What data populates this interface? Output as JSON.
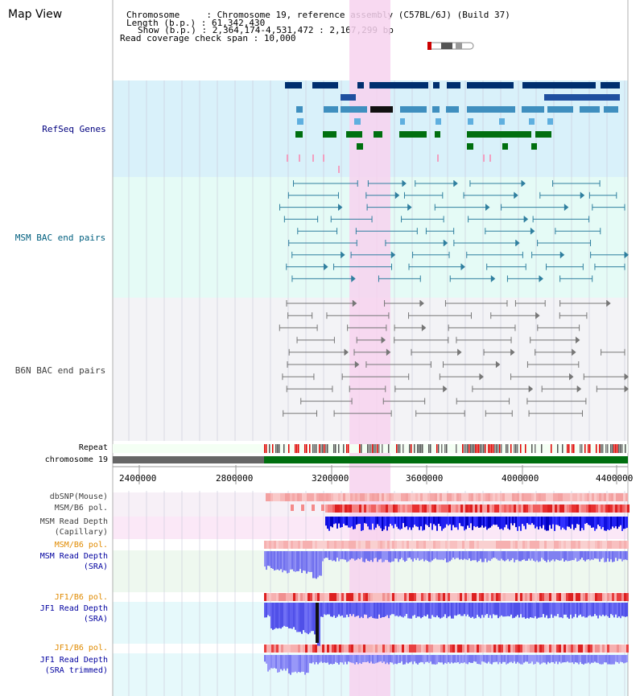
{
  "title": "Map View",
  "info": {
    "chromosome_key": "Chromosome     : ",
    "chromosome": "Chromosome 19, reference assembly (C57BL/6J) (Build 37)",
    "length_key": "Length (b.p.) : ",
    "length": "61,342,430",
    "show_key": "Show (b.p.) : ",
    "show": "2,364,174-4,531,472 : 2,167,299 bp",
    "coverage_key": "Read coverage check span : ",
    "coverage": "10,000"
  },
  "tracks": {
    "refseq": "RefSeq Genes",
    "msm_bac": "MSM BAC end pairs",
    "b6n_bac": "B6N BAC end pairs",
    "repeat": "Repeat",
    "chromosome": "chromosome 19",
    "dbsnp": "dbSNP(Mouse)",
    "msm_b6_pol_1": "MSM/B6 pol.",
    "msm_depth_cap_1": "MSM Read Depth",
    "msm_depth_cap_2": "(Capillary)",
    "msm_b6_pol_2": "MSM/B6 pol.",
    "msm_depth_sra_1": "MSM Read Depth",
    "msm_depth_sra_2": "(SRA)",
    "jf1_b6_pol_1": "JF1/B6 pol.",
    "jf1_depth_sra_1": "JF1 Read Depth",
    "jf1_depth_sra_2": "(SRA)",
    "jf1_b6_pol_2": "JF1/B6 pol.",
    "jf1_depth_trim_1": "JF1 Read Depth",
    "jf1_depth_trim_2": "(SRA trimmed)"
  },
  "axis": {
    "ticks": [
      "2400000",
      "2800000",
      "3200000",
      "3600000",
      "4000000",
      "4400000"
    ]
  },
  "colors": {
    "refseq_bg": "#d9f1fa",
    "msm_bac_bg": "#e5fbf6",
    "b6n_bac_bg": "#f3f3f6",
    "highlight": "#f7d2ee",
    "refseq_label": "#00007f",
    "msm_label": "#005f7f",
    "b6n_label": "#3f3f3f",
    "orange_label": "#e08a00",
    "blue_label": "#00009f"
  }
}
